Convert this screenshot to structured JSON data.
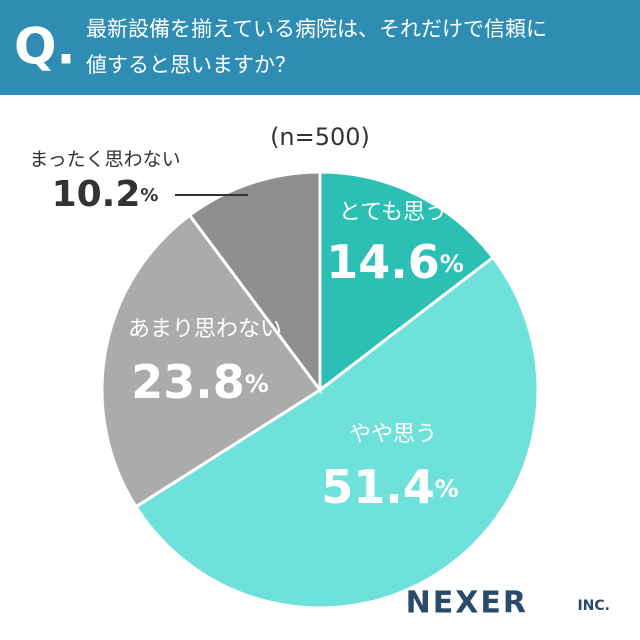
{
  "header": {
    "badge": "Q.",
    "question_lines": [
      "最新設備を揃えている病院は、それだけで信頼に",
      "値すると思いますか？"
    ]
  },
  "chart_data": {
    "type": "pie",
    "subtitle": "(n=500)",
    "categories": [
      "とても思う",
      "やや思う",
      "あまり思わない",
      "まったく思わない"
    ],
    "values": [
      14.6,
      51.4,
      23.8,
      10.2
    ],
    "value_labels": [
      "14.6%",
      "51.4%",
      "23.8%",
      "10.2%"
    ],
    "colors": [
      "#2cc0b4",
      "#6fe1db",
      "#ababab",
      "#908f8f"
    ]
  },
  "footer": {
    "logo": "NEXER",
    "logo_suffix": "INC."
  }
}
